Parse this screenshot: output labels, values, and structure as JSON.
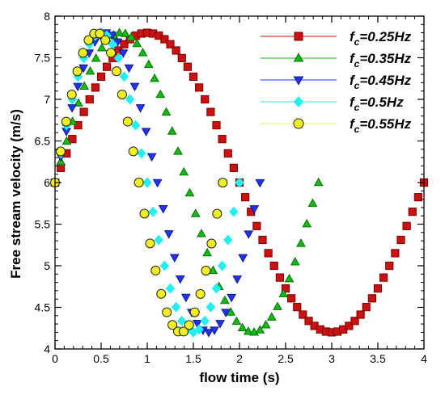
{
  "chart_data": {
    "type": "scatter",
    "xlabel": "flow time (s)",
    "ylabel": "Free stream velocity (m/s)",
    "xlim": [
      0,
      4
    ],
    "ylim": [
      4,
      8
    ],
    "x_ticks": [
      "0",
      "0.5",
      "1",
      "1.5",
      "2",
      "2.5",
      "3",
      "3.5",
      "4"
    ],
    "y_ticks": [
      "4",
      "4.5",
      "5",
      "5.5",
      "6",
      "6.5",
      "7",
      "7.5",
      "8"
    ],
    "grid": false,
    "legend_position": "top-right",
    "series": [
      {
        "name_prefix": "f",
        "name_sub": "c",
        "name_suffix": "=0.25Hz",
        "frequency": 0.25,
        "t_end": 4.0,
        "points": 64,
        "mean": 6.0,
        "amplitude": 1.8,
        "color": "#cc1111",
        "stroke": "#7a0000",
        "marker": "square"
      },
      {
        "name_prefix": "f",
        "name_sub": "c",
        "name_suffix": "=0.35Hz",
        "frequency": 0.35,
        "t_end": 2.857,
        "points": 45,
        "mean": 6.0,
        "amplitude": 1.8,
        "color": "#11bb11",
        "stroke": "#0a700a",
        "marker": "triangle-up"
      },
      {
        "name_prefix": "f",
        "name_sub": "c",
        "name_suffix": "=0.45Hz",
        "frequency": 0.45,
        "t_end": 2.222,
        "points": 36,
        "mean": 6.0,
        "amplitude": 1.8,
        "color": "#2233ee",
        "stroke": "#101a90",
        "marker": "triangle-down"
      },
      {
        "name_prefix": "f",
        "name_sub": "c",
        "name_suffix": "=0.5Hz",
        "frequency": 0.5,
        "t_end": 2.0,
        "points": 32,
        "mean": 6.0,
        "amplitude": 1.8,
        "color": "#22f0f0",
        "stroke": "#22f0f0",
        "marker": "diamond"
      },
      {
        "name_prefix": "f",
        "name_sub": "c",
        "name_suffix": "=0.55Hz",
        "frequency": 0.55,
        "t_end": 1.818,
        "points": 30,
        "mean": 6.0,
        "amplitude": 1.8,
        "color": "#f4f020",
        "stroke": "#222222",
        "marker": "circle"
      }
    ]
  }
}
